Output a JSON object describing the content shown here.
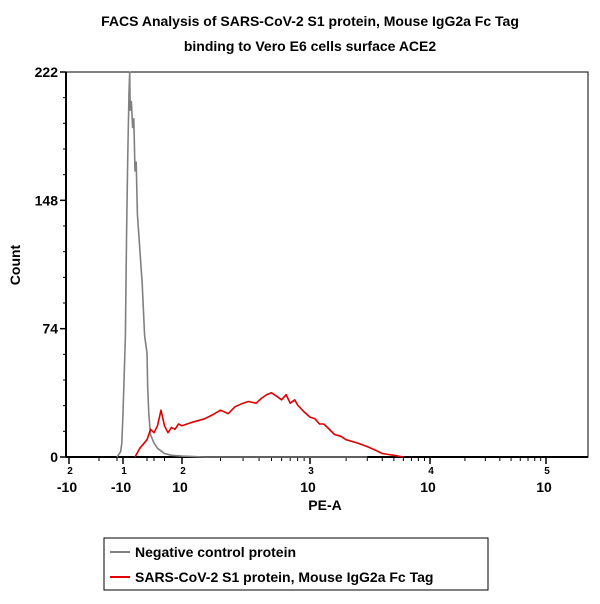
{
  "chart_data": {
    "type": "line",
    "title": [
      "FACS Analysis of SARS-CoV-2 S1 protein, Mouse IgG2a Fc Tag",
      "binding to Vero E6 cells surface ACE2"
    ],
    "xlabel": "PE-A",
    "ylabel": "Count",
    "x_scale": "biexponential",
    "ylim": [
      0,
      222
    ],
    "y_ticks": [
      {
        "value": 0,
        "label": "0"
      },
      {
        "value": 74,
        "label": "74"
      },
      {
        "value": 148,
        "label": "148"
      },
      {
        "value": 222,
        "label": "222"
      }
    ],
    "x_ticks": [
      {
        "base": "-10",
        "exp": "2"
      },
      {
        "base": "-10",
        "exp": "1"
      },
      {
        "base": "10",
        "exp": "2"
      },
      {
        "base": "10",
        "exp": "3"
      },
      {
        "base": "10",
        "exp": "4"
      },
      {
        "base": "10",
        "exp": "5"
      }
    ],
    "legend": {
      "placement": "bottom"
    },
    "series": [
      {
        "name": "Negative control protein",
        "color": "#808080",
        "points": [
          [
            -20,
            0
          ],
          [
            -14,
            3
          ],
          [
            -12,
            8
          ],
          [
            -10,
            25
          ],
          [
            -9,
            70
          ],
          [
            -8.5,
            130
          ],
          [
            -8,
            175
          ],
          [
            -7.5,
            210
          ],
          [
            -7.2,
            222
          ],
          [
            -7,
            200
          ],
          [
            -6.5,
            205
          ],
          [
            -6,
            190
          ],
          [
            -5.5,
            195
          ],
          [
            -5,
            165
          ],
          [
            -4.5,
            170
          ],
          [
            -4,
            140
          ],
          [
            -3,
            120
          ],
          [
            -2,
            100
          ],
          [
            -1,
            70
          ],
          [
            0,
            60
          ],
          [
            2,
            40
          ],
          [
            5,
            25
          ],
          [
            10,
            13
          ],
          [
            20,
            8
          ],
          [
            30,
            5
          ],
          [
            50,
            2
          ],
          [
            70,
            1
          ],
          [
            100,
            0.5
          ],
          [
            150,
            0
          ],
          [
            800,
            0
          ],
          [
            3000,
            0
          ]
        ]
      },
      {
        "name": "SARS-CoV-2 S1 protein, Mouse IgG2a Fc Tag",
        "color": "#e00000",
        "points": [
          [
            -5,
            0
          ],
          [
            -3,
            5
          ],
          [
            0,
            10
          ],
          [
            5,
            13
          ],
          [
            10,
            16
          ],
          [
            20,
            14
          ],
          [
            30,
            18
          ],
          [
            40,
            27
          ],
          [
            50,
            18
          ],
          [
            60,
            14
          ],
          [
            70,
            17
          ],
          [
            80,
            16
          ],
          [
            90,
            19
          ],
          [
            100,
            18
          ],
          [
            120,
            20
          ],
          [
            150,
            22
          ],
          [
            170,
            24
          ],
          [
            200,
            27
          ],
          [
            230,
            25
          ],
          [
            260,
            29
          ],
          [
            300,
            31
          ],
          [
            330,
            32
          ],
          [
            380,
            31
          ],
          [
            420,
            34
          ],
          [
            460,
            36
          ],
          [
            500,
            37
          ],
          [
            550,
            35
          ],
          [
            600,
            33
          ],
          [
            650,
            36
          ],
          [
            700,
            31
          ],
          [
            760,
            33
          ],
          [
            800,
            30
          ],
          [
            900,
            26
          ],
          [
            1000,
            23
          ],
          [
            1100,
            22
          ],
          [
            1200,
            19
          ],
          [
            1300,
            19
          ],
          [
            1400,
            17
          ],
          [
            1600,
            13
          ],
          [
            1800,
            12
          ],
          [
            2000,
            10
          ],
          [
            2500,
            8
          ],
          [
            3000,
            6
          ],
          [
            3500,
            4
          ],
          [
            4000,
            2
          ],
          [
            5000,
            1
          ],
          [
            6000,
            0
          ]
        ]
      }
    ]
  }
}
